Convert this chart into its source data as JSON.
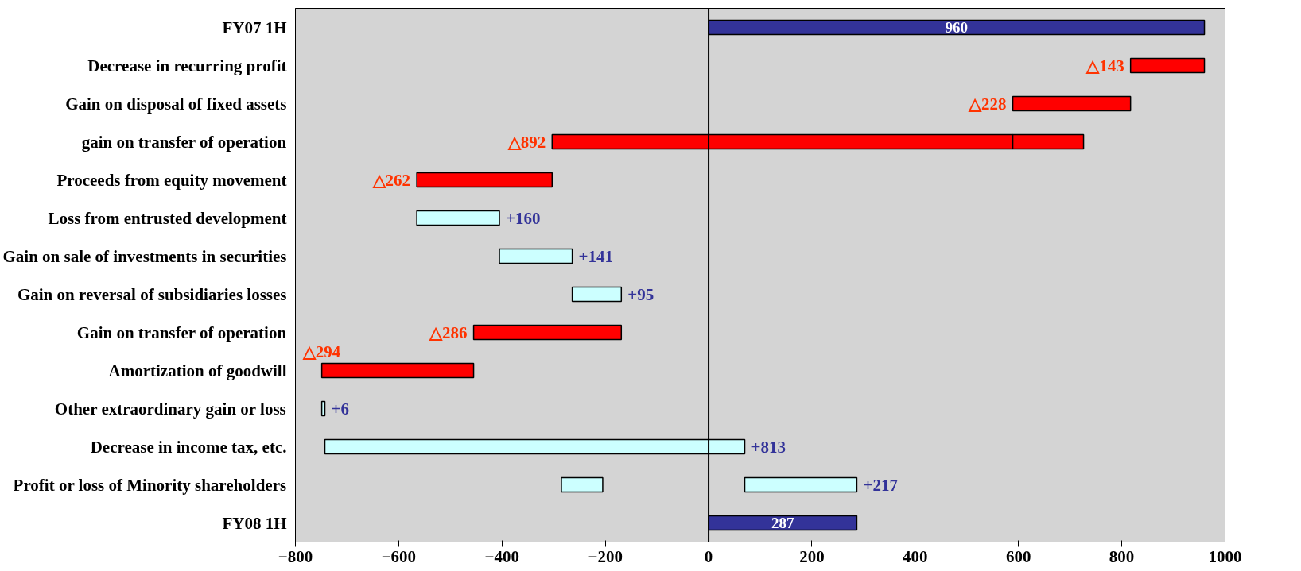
{
  "chart_data": {
    "type": "bar",
    "orientation": "horizontal",
    "categories": [
      "FY07 1H",
      "Decrease in recurring profit",
      "Gain on disposal of fixed assets",
      "gain on transfer of operation",
      "Proceeds from equity movement",
      "Loss from entrusted development",
      "Gain on sale of investments in securities",
      "Gain on reversal of subsidiaries losses",
      "Gain on transfer of operation",
      "Amortization of goodwill",
      "Other extraordinary gain or loss",
      "Decrease in income tax, etc.",
      "Profit or loss of Minority shareholders",
      "FY08 1H"
    ],
    "series": [
      {
        "values": [
          960,
          -143,
          -228,
          -892,
          -262,
          160,
          141,
          95,
          -286,
          -294,
          6,
          813,
          217,
          287
        ],
        "base": [
          0,
          960,
          817,
          589,
          -303,
          -565,
          -405,
          -264,
          -169,
          -455,
          -749,
          -743,
          70,
          0
        ],
        "colors": [
          "#333399",
          "#ff0000",
          "#ff0000",
          "#ff0000",
          "#ff0000",
          "#ccffff",
          "#ccffff",
          "#ccffff",
          "#ff0000",
          "#ff0000",
          "#ccffff",
          "#ccffff",
          "#ccffff",
          "#333399"
        ],
        "value_labels": [
          "960",
          "△143",
          "△228",
          "△892",
          "△262",
          "+160",
          "+141",
          "+95",
          "△286",
          "△294",
          "+6",
          "+813",
          "+217",
          "287"
        ]
      },
      {
        "values": [
          null,
          null,
          null,
          137,
          null,
          null,
          null,
          null,
          null,
          null,
          null,
          null,
          80,
          null
        ],
        "base": [
          null,
          null,
          null,
          589,
          null,
          null,
          null,
          null,
          null,
          null,
          null,
          null,
          -285,
          null
        ],
        "colors": [
          "#ccffff",
          "#ccffff",
          "#ccffff",
          "#ff0000",
          "#ccffff",
          "#ccffff",
          "#ccffff",
          "#ccffff",
          "#ccffff",
          "#ccffff",
          "#ccffff",
          "#ccffff",
          "#ccffff",
          "#ccffff"
        ]
      }
    ],
    "xlim": [
      -800,
      1000
    ],
    "xticks": [
      -800,
      -600,
      -400,
      -200,
      0,
      200,
      400,
      600,
      800,
      1000
    ],
    "ref_lines": [
      {
        "axis": "x",
        "value": 0,
        "label": null
      }
    ],
    "grid": false
  }
}
